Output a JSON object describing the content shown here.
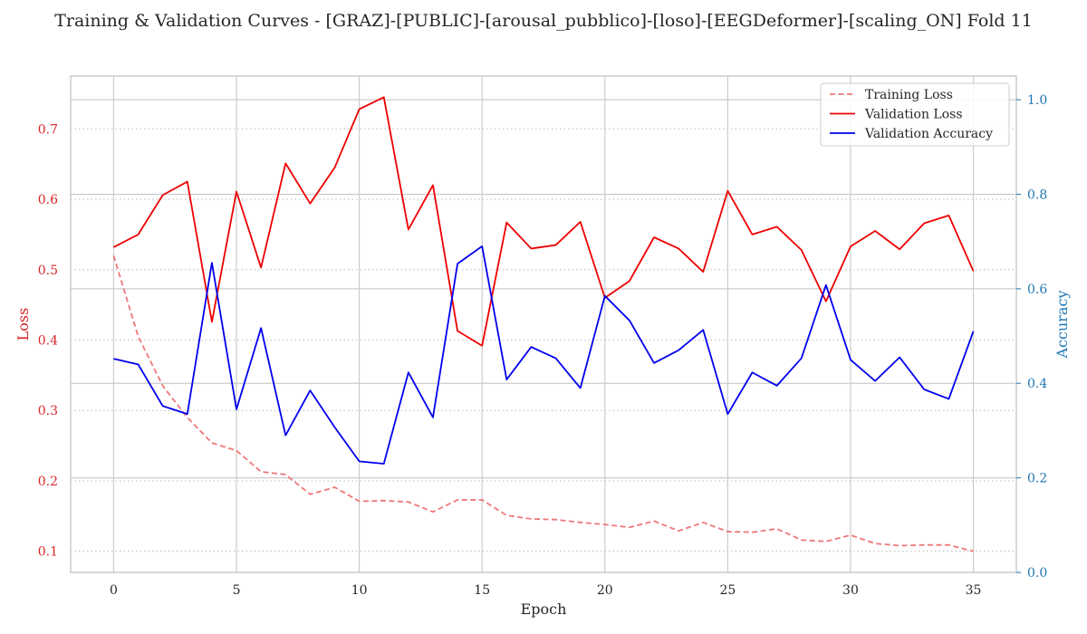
{
  "chart_data": {
    "type": "line",
    "title": "Training & Validation Curves - [GRAZ]-[PUBLIC]-[arousal_pubblico]-[loso]-[EEGDeformer]-[scaling_ON] Fold 11",
    "xlabel": "Epoch",
    "ylabel_left": "Loss",
    "ylabel_right": "Accuracy",
    "xlim": [
      -1.75,
      36.75
    ],
    "ylim_left": [
      0.07,
      0.775
    ],
    "ylim_right": [
      0.0,
      1.05
    ],
    "x_ticks": [
      0,
      5,
      10,
      15,
      20,
      25,
      30,
      35
    ],
    "y_ticks_left": [
      0.1,
      0.2,
      0.3,
      0.4,
      0.5,
      0.6,
      0.7
    ],
    "y_ticks_right": [
      0.0,
      0.2,
      0.4,
      0.6,
      0.8,
      1.0
    ],
    "grid": true,
    "legend_position": "top-right",
    "x": [
      0,
      1,
      2,
      3,
      4,
      5,
      6,
      7,
      8,
      9,
      10,
      11,
      12,
      13,
      14,
      15,
      16,
      17,
      18,
      19,
      20,
      21,
      22,
      23,
      24,
      25,
      26,
      27,
      28,
      29,
      30,
      31,
      32,
      33,
      34,
      35
    ],
    "series": [
      {
        "name": "Training Loss",
        "axis": "left",
        "color": "#ee7878",
        "style": "dashed",
        "values": [
          0.52,
          0.405,
          0.335,
          0.29,
          0.254,
          0.243,
          0.213,
          0.209,
          0.181,
          0.191,
          0.171,
          0.172,
          0.17,
          0.156,
          0.173,
          0.173,
          0.151,
          0.146,
          0.145,
          0.141,
          0.138,
          0.134,
          0.143,
          0.129,
          0.141,
          0.128,
          0.127,
          0.132,
          0.116,
          0.114,
          0.123,
          0.111,
          0.108,
          0.109,
          0.109,
          0.1
        ]
      },
      {
        "name": "Validation Loss",
        "axis": "left",
        "color": "#ee0000",
        "style": "solid",
        "values": [
          0.532,
          0.55,
          0.606,
          0.625,
          0.426,
          0.611,
          0.503,
          0.651,
          0.594,
          0.645,
          0.728,
          0.745,
          0.557,
          0.62,
          0.413,
          0.392,
          0.567,
          0.53,
          0.535,
          0.568,
          0.46,
          0.484,
          0.546,
          0.53,
          0.497,
          0.612,
          0.55,
          0.561,
          0.528,
          0.455,
          0.533,
          0.555,
          0.529,
          0.566,
          0.577,
          0.498
        ]
      },
      {
        "name": "Validation Accuracy",
        "axis": "right",
        "color": "#0000ee",
        "style": "solid",
        "values": [
          0.452,
          0.44,
          0.352,
          0.335,
          0.655,
          0.345,
          0.517,
          0.29,
          0.385,
          0.307,
          0.235,
          0.23,
          0.423,
          0.328,
          0.653,
          0.69,
          0.408,
          0.477,
          0.453,
          0.39,
          0.585,
          0.533,
          0.443,
          0.47,
          0.513,
          0.335,
          0.423,
          0.395,
          0.453,
          0.608,
          0.45,
          0.405,
          0.455,
          0.387,
          0.367,
          0.51
        ]
      }
    ]
  },
  "colors": {
    "left_axis": "#d62728",
    "right_axis": "#1f77b4",
    "grid_major": "#cccccc",
    "grid_minor": "#bbbbbb",
    "frame": "#cccccc"
  }
}
